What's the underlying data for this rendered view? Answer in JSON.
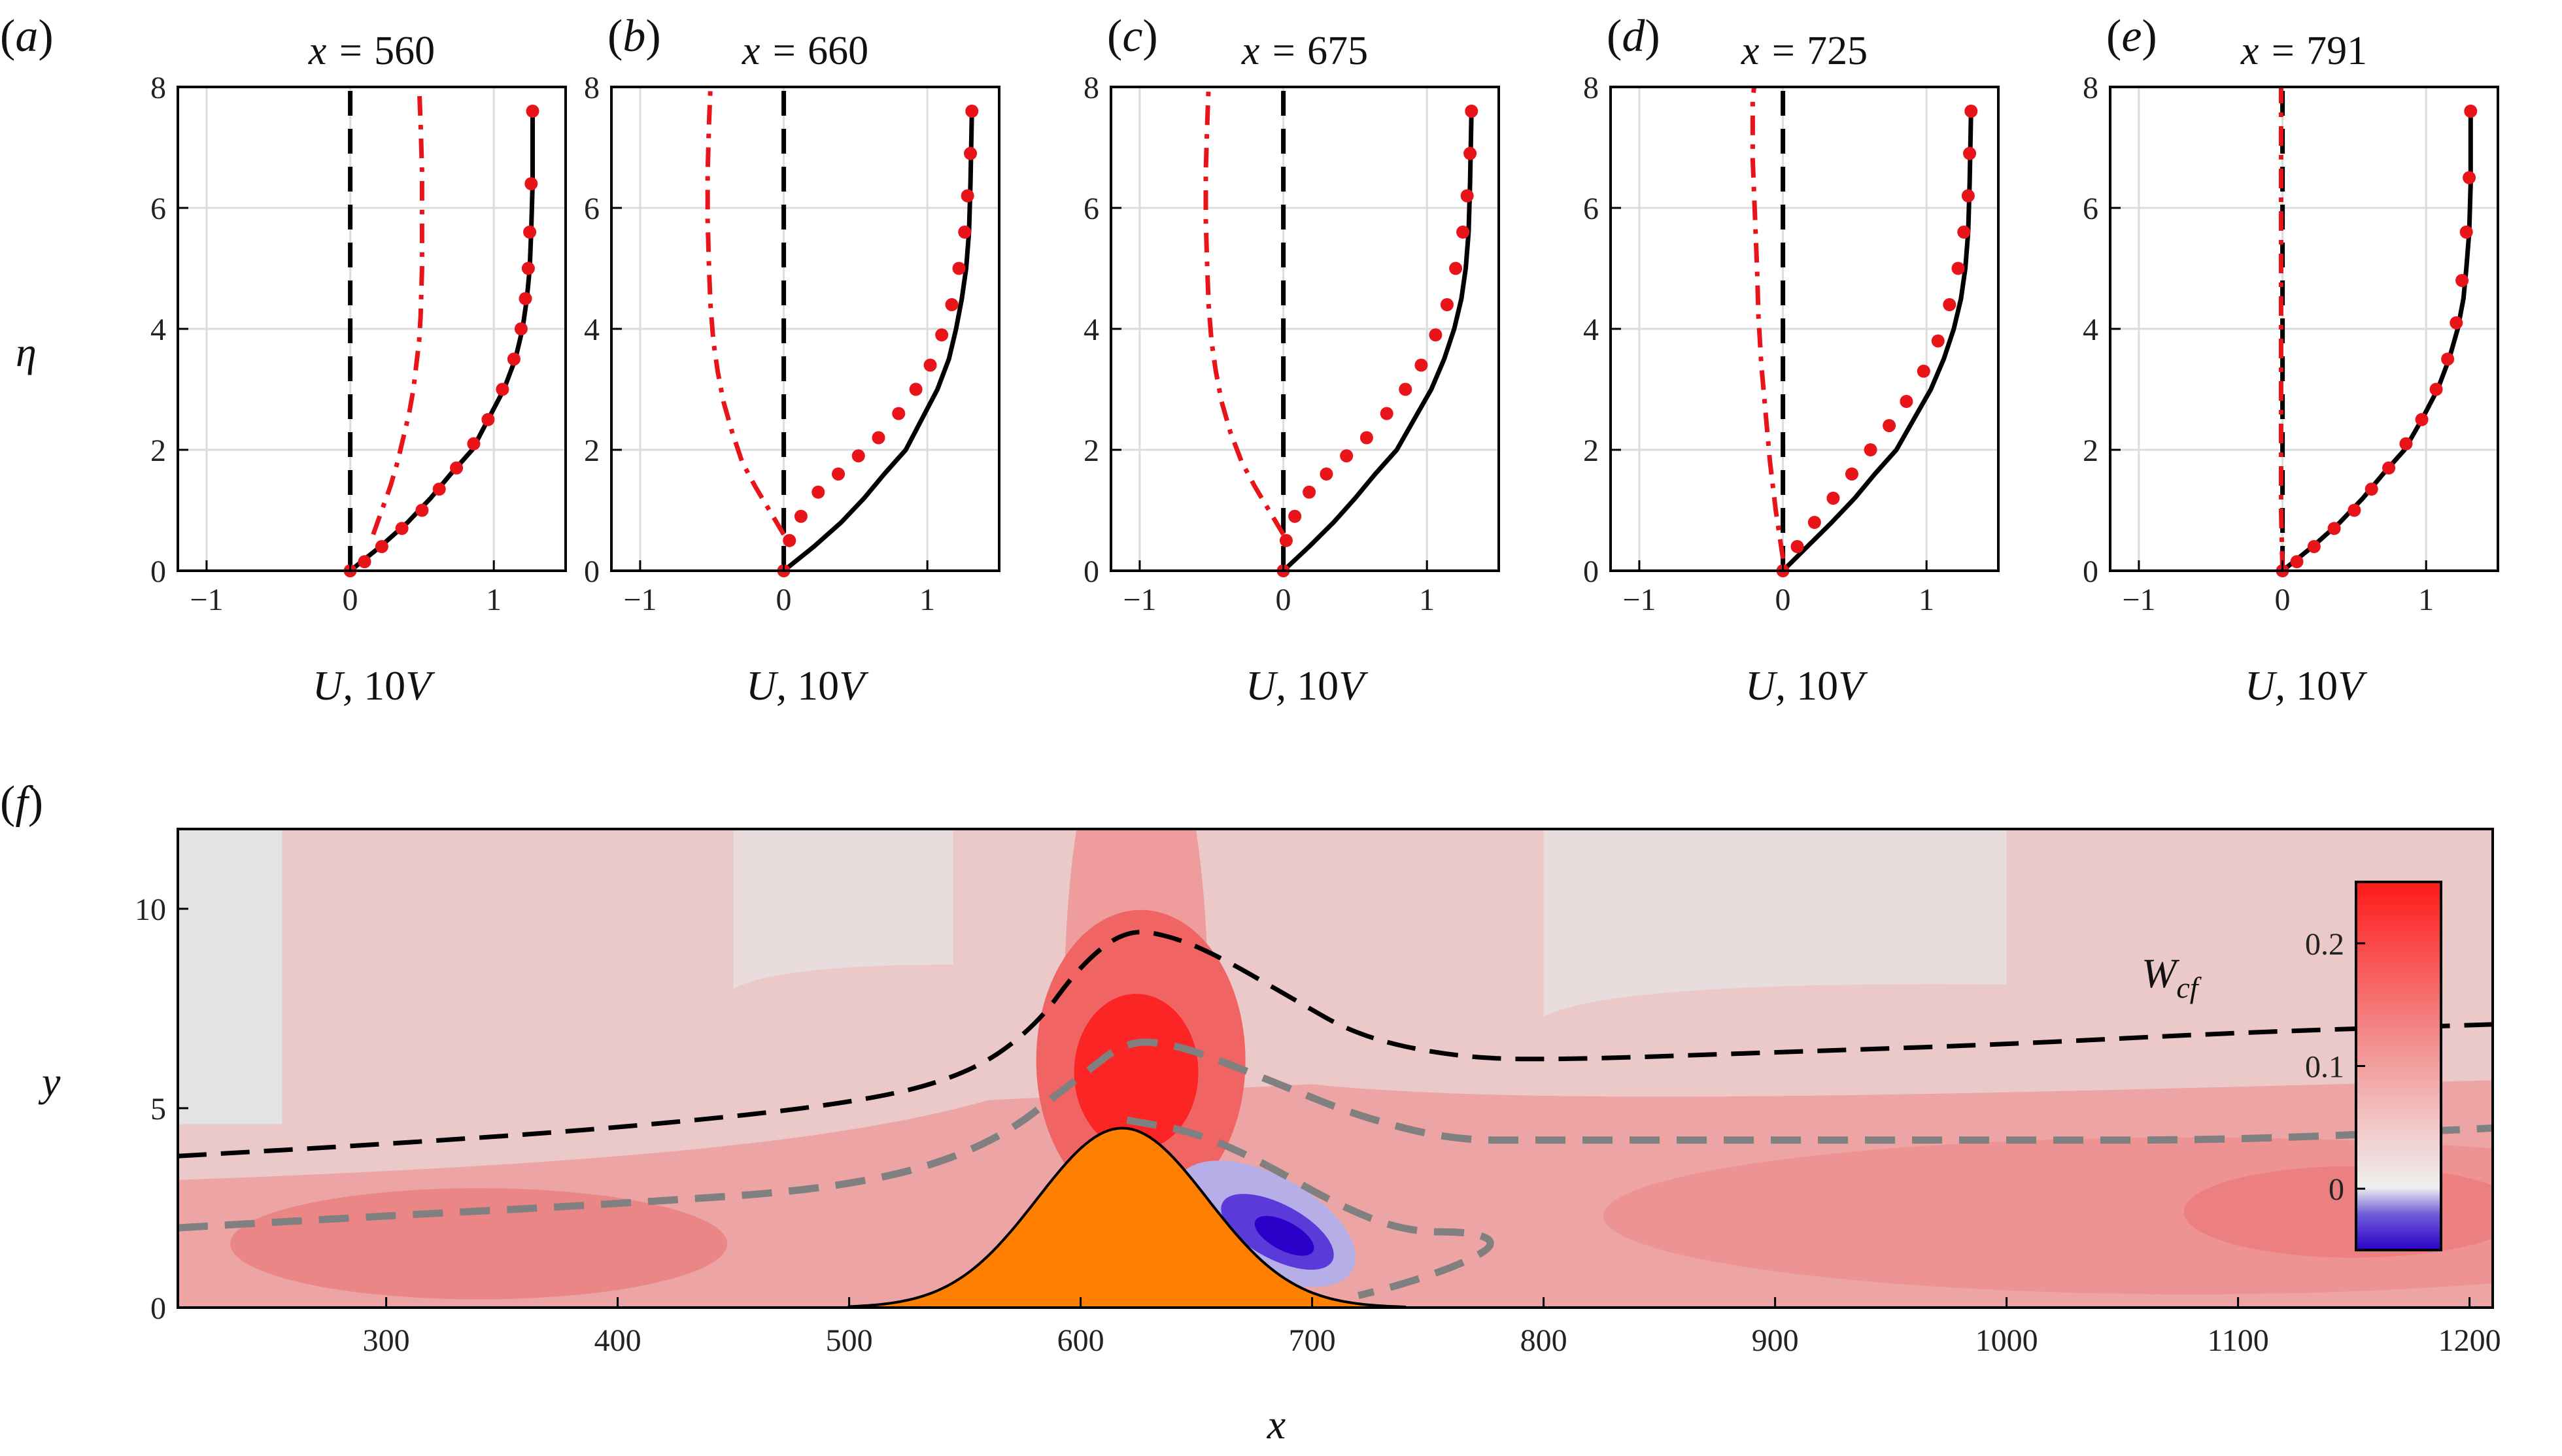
{
  "chart_data": [
    {
      "type": "line",
      "panel_label": "(a)",
      "title": "x = 560",
      "xlabel": "U, 10V",
      "ylabel": "η",
      "xlim": [
        -1.2,
        1.5
      ],
      "ylim": [
        0,
        8
      ],
      "xticks": [
        -1,
        0,
        1
      ],
      "yticks": [
        0,
        2,
        4,
        6,
        8
      ],
      "grid": true,
      "series": [
        {
          "style": "solid-black",
          "x": [
            0,
            0.21,
            0.4,
            0.56,
            0.7,
            0.85,
            0.96,
            1.07,
            1.15,
            1.2,
            1.23,
            1.25,
            1.26,
            1.27,
            1.27
          ],
          "y": [
            0,
            0.4,
            0.8,
            1.2,
            1.6,
            2.0,
            2.5,
            3.0,
            3.5,
            4.0,
            4.5,
            5.0,
            5.6,
            6.4,
            7.6
          ]
        },
        {
          "style": "dashed-black",
          "x": [
            0,
            0
          ],
          "y": [
            0,
            8
          ]
        },
        {
          "style": "dashdot-red",
          "x": [
            0.16,
            0.22,
            0.28,
            0.33,
            0.37,
            0.41,
            0.44,
            0.46,
            0.48,
            0.49,
            0.5,
            0.5,
            0.5,
            0.49,
            0.48
          ],
          "y": [
            0.6,
            1.0,
            1.4,
            1.8,
            2.2,
            2.6,
            3.0,
            3.4,
            3.8,
            4.2,
            5.0,
            5.8,
            6.6,
            7.4,
            8.0
          ]
        },
        {
          "style": "dots-red",
          "x": [
            0,
            0.1,
            0.22,
            0.36,
            0.5,
            0.62,
            0.74,
            0.86,
            0.96,
            1.06,
            1.14,
            1.19,
            1.22,
            1.24,
            1.25,
            1.26,
            1.27
          ],
          "y": [
            0,
            0.15,
            0.4,
            0.7,
            1.0,
            1.35,
            1.7,
            2.1,
            2.5,
            3.0,
            3.5,
            4.0,
            4.5,
            5.0,
            5.6,
            6.4,
            7.6
          ]
        }
      ]
    },
    {
      "type": "line",
      "panel_label": "(b)",
      "title": "x = 660",
      "xlabel": "U, 10V",
      "ylabel": "",
      "xlim": [
        -1.2,
        1.5
      ],
      "ylim": [
        0,
        8
      ],
      "xticks": [
        -1,
        0,
        1
      ],
      "yticks": [
        0,
        2,
        4,
        6,
        8
      ],
      "grid": true,
      "series": [
        {
          "style": "solid-black",
          "x": [
            0,
            0.21,
            0.4,
            0.56,
            0.7,
            0.85,
            0.96,
            1.07,
            1.15,
            1.2,
            1.24,
            1.27,
            1.29,
            1.3,
            1.31
          ],
          "y": [
            0,
            0.4,
            0.8,
            1.2,
            1.6,
            2.0,
            2.5,
            3.0,
            3.5,
            4.0,
            4.5,
            5.0,
            5.6,
            6.4,
            7.6
          ]
        },
        {
          "style": "dashed-black",
          "x": [
            0,
            0
          ],
          "y": [
            0,
            8
          ]
        },
        {
          "style": "dashdot-red",
          "x": [
            0,
            -0.1,
            -0.2,
            -0.29,
            -0.36,
            -0.42,
            -0.46,
            -0.49,
            -0.51,
            -0.52,
            -0.53,
            -0.53,
            -0.52,
            -0.51
          ],
          "y": [
            0.6,
            1.0,
            1.4,
            1.8,
            2.3,
            2.8,
            3.3,
            3.8,
            4.4,
            5.0,
            5.8,
            6.6,
            7.4,
            8.0
          ]
        },
        {
          "style": "dots-red",
          "x": [
            0,
            0.04,
            0.12,
            0.24,
            0.38,
            0.52,
            0.66,
            0.8,
            0.92,
            1.02,
            1.1,
            1.17,
            1.22,
            1.26,
            1.28,
            1.3,
            1.31
          ],
          "y": [
            0,
            0.5,
            0.9,
            1.3,
            1.6,
            1.9,
            2.2,
            2.6,
            3.0,
            3.4,
            3.9,
            4.4,
            5.0,
            5.6,
            6.2,
            6.9,
            7.6
          ]
        }
      ]
    },
    {
      "type": "line",
      "panel_label": "(c)",
      "title": "x = 675",
      "xlabel": "U, 10V",
      "ylabel": "",
      "xlim": [
        -1.2,
        1.5
      ],
      "ylim": [
        0,
        8
      ],
      "xticks": [
        -1,
        0,
        1
      ],
      "yticks": [
        0,
        2,
        4,
        6,
        8
      ],
      "grid": true,
      "series": [
        {
          "style": "solid-black",
          "x": [
            0,
            0.18,
            0.35,
            0.5,
            0.64,
            0.79,
            0.91,
            1.03,
            1.12,
            1.19,
            1.24,
            1.27,
            1.29,
            1.3,
            1.31
          ],
          "y": [
            0,
            0.4,
            0.8,
            1.2,
            1.6,
            2.0,
            2.5,
            3.0,
            3.5,
            4.0,
            4.5,
            5.0,
            5.6,
            6.4,
            7.6
          ]
        },
        {
          "style": "dashed-black",
          "x": [
            0,
            0
          ],
          "y": [
            0,
            8
          ]
        },
        {
          "style": "dashdot-red",
          "x": [
            0,
            -0.1,
            -0.2,
            -0.29,
            -0.37,
            -0.43,
            -0.47,
            -0.5,
            -0.52,
            -0.53,
            -0.54,
            -0.54,
            -0.53,
            -0.52
          ],
          "y": [
            0.6,
            1.0,
            1.4,
            1.8,
            2.3,
            2.8,
            3.3,
            3.8,
            4.4,
            5.0,
            5.8,
            6.6,
            7.4,
            8.0
          ]
        },
        {
          "style": "dots-red",
          "x": [
            0,
            0.02,
            0.08,
            0.18,
            0.3,
            0.44,
            0.58,
            0.72,
            0.85,
            0.96,
            1.06,
            1.14,
            1.2,
            1.25,
            1.28,
            1.3,
            1.31
          ],
          "y": [
            0,
            0.5,
            0.9,
            1.3,
            1.6,
            1.9,
            2.2,
            2.6,
            3.0,
            3.4,
            3.9,
            4.4,
            5.0,
            5.6,
            6.2,
            6.9,
            7.6
          ]
        }
      ]
    },
    {
      "type": "line",
      "panel_label": "(d)",
      "title": "x = 725",
      "xlabel": "U, 10V",
      "ylabel": "",
      "xlim": [
        -1.2,
        1.5
      ],
      "ylim": [
        0,
        8
      ],
      "xticks": [
        -1,
        0,
        1
      ],
      "yticks": [
        0,
        2,
        4,
        6,
        8
      ],
      "grid": true,
      "series": [
        {
          "style": "solid-black",
          "x": [
            0,
            0.17,
            0.34,
            0.5,
            0.64,
            0.79,
            0.91,
            1.03,
            1.12,
            1.19,
            1.24,
            1.27,
            1.29,
            1.3,
            1.31
          ],
          "y": [
            0,
            0.4,
            0.8,
            1.2,
            1.6,
            2.0,
            2.5,
            3.0,
            3.5,
            4.0,
            4.5,
            5.0,
            5.6,
            6.4,
            7.6
          ]
        },
        {
          "style": "dashed-black",
          "x": [
            0,
            0
          ],
          "y": [
            0,
            8
          ]
        },
        {
          "style": "dashdot-red",
          "x": [
            0,
            -0.05,
            -0.09,
            -0.12,
            -0.15,
            -0.17,
            -0.18,
            -0.19,
            -0.2,
            -0.21,
            -0.21,
            -0.21,
            -0.2
          ],
          "y": [
            0.2,
            1.0,
            1.8,
            2.6,
            3.4,
            4.2,
            5.0,
            5.6,
            6.2,
            6.8,
            7.4,
            7.8,
            8.0
          ]
        },
        {
          "style": "dots-red",
          "x": [
            0,
            0.1,
            0.22,
            0.35,
            0.48,
            0.61,
            0.74,
            0.86,
            0.98,
            1.08,
            1.16,
            1.22,
            1.26,
            1.29,
            1.3,
            1.31
          ],
          "y": [
            0,
            0.4,
            0.8,
            1.2,
            1.6,
            2.0,
            2.4,
            2.8,
            3.3,
            3.8,
            4.4,
            5.0,
            5.6,
            6.2,
            6.9,
            7.6
          ]
        }
      ]
    },
    {
      "type": "line",
      "panel_label": "(e)",
      "title": "x = 791",
      "xlabel": "U, 10V",
      "ylabel": "",
      "xlim": [
        -1.2,
        1.5
      ],
      "ylim": [
        0,
        8
      ],
      "xticks": [
        -1,
        0,
        1
      ],
      "yticks": [
        0,
        2,
        4,
        6,
        8
      ],
      "grid": true,
      "series": [
        {
          "style": "solid-black",
          "x": [
            0,
            0.21,
            0.4,
            0.56,
            0.7,
            0.85,
            0.97,
            1.08,
            1.16,
            1.22,
            1.26,
            1.28,
            1.3,
            1.31,
            1.31
          ],
          "y": [
            0,
            0.4,
            0.8,
            1.2,
            1.6,
            2.0,
            2.5,
            3.0,
            3.5,
            4.0,
            4.5,
            5.0,
            5.6,
            6.4,
            7.6
          ]
        },
        {
          "style": "dashed-black",
          "x": [
            0,
            0
          ],
          "y": [
            0,
            8
          ]
        },
        {
          "style": "dashdot-red",
          "x": [
            0,
            -0.01,
            -0.01,
            -0.01,
            -0.01,
            -0.01,
            -0.01
          ],
          "y": [
            0,
            1.0,
            2.5,
            4.0,
            5.5,
            7.0,
            8.0
          ]
        },
        {
          "style": "dots-red",
          "x": [
            0,
            0.1,
            0.22,
            0.36,
            0.5,
            0.62,
            0.74,
            0.86,
            0.97,
            1.07,
            1.15,
            1.21,
            1.25,
            1.28,
            1.3,
            1.31
          ],
          "y": [
            0,
            0.15,
            0.4,
            0.7,
            1.0,
            1.35,
            1.7,
            2.1,
            2.5,
            3.0,
            3.5,
            4.1,
            4.8,
            5.6,
            6.5,
            7.6
          ]
        }
      ]
    },
    {
      "type": "heatmap",
      "panel_label": "(f)",
      "title": "",
      "xlabel": "x",
      "ylabel": "y",
      "xlim": [
        210,
        1210
      ],
      "ylim": [
        0,
        12
      ],
      "xticks": [
        300,
        400,
        500,
        600,
        700,
        800,
        900,
        1000,
        1100,
        1200
      ],
      "yticks": [
        0,
        5,
        10
      ],
      "colorbar": {
        "label": "W_cf",
        "ticks": [
          0,
          0.1,
          0.2
        ],
        "range": [
          -0.05,
          0.25
        ],
        "placement": "right-inside"
      },
      "hump": {
        "color": "#ff7f00",
        "center": 618,
        "height": 4.5,
        "width": 52
      },
      "contours": [
        {
          "style": "dashed-black",
          "x": [
            210,
            300,
            400,
            500,
            550,
            580,
            600,
            620,
            640,
            660,
            690,
            720,
            760,
            800,
            900,
            1000,
            1100,
            1210
          ],
          "y": [
            3.8,
            4.1,
            4.5,
            5.1,
            5.8,
            7.0,
            8.6,
            9.5,
            9.3,
            8.8,
            7.8,
            6.8,
            6.3,
            6.2,
            6.4,
            6.6,
            6.9,
            7.1
          ]
        },
        {
          "style": "dashed-grey",
          "x": [
            210,
            300,
            400,
            500,
            560,
            600,
            620,
            640,
            660,
            690,
            720,
            760,
            800,
            900,
            1000,
            1100,
            1210
          ],
          "y": [
            2.0,
            2.3,
            2.6,
            3.0,
            4.0,
            5.8,
            6.7,
            6.6,
            6.2,
            5.5,
            4.8,
            4.2,
            4.2,
            4.2,
            4.2,
            4.2,
            4.5
          ]
        },
        {
          "style": "dashed-grey",
          "x": [
            620,
            650,
            680,
            710,
            740,
            770,
            780,
            765,
            740,
            720
          ],
          "y": [
            4.7,
            4.4,
            3.6,
            2.6,
            1.9,
            1.9,
            1.6,
            1.1,
            0.6,
            0.3
          ]
        }
      ]
    }
  ]
}
